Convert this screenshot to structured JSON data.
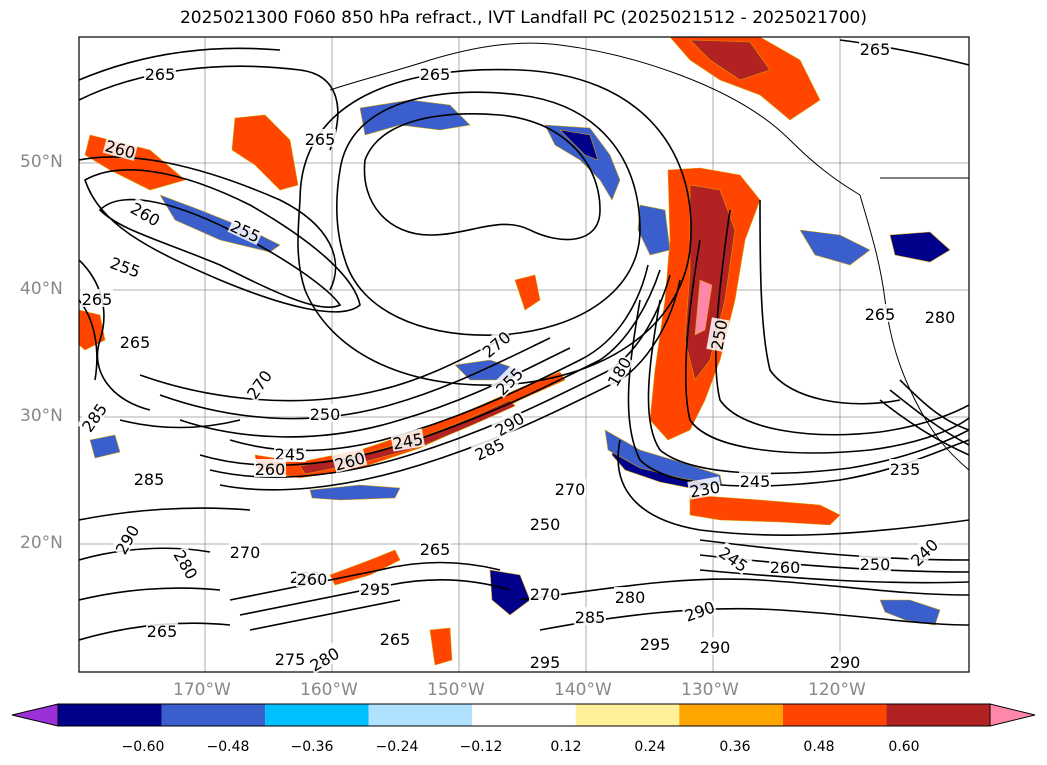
{
  "title": "2025021300 F060 850 hPa refract., IVT Landfall PC (2025021512 - 2025021700)",
  "lat_labels": [
    "50°N",
    "40°N",
    "30°N",
    "20°N"
  ],
  "lon_labels": [
    "170°W",
    "160°W",
    "150°W",
    "140°W",
    "130°W",
    "120°W"
  ],
  "contour_labels": [
    "265",
    "265",
    "265",
    "265",
    "260",
    "260",
    "255",
    "255",
    "265",
    "265",
    "270",
    "270",
    "285",
    "285",
    "290",
    "280",
    "270",
    "265",
    "250",
    "245",
    "245",
    "255",
    "260",
    "260",
    "260",
    "290",
    "285",
    "270",
    "250",
    "250",
    "180",
    "230",
    "245",
    "235",
    "265",
    "270",
    "260",
    "295",
    "280",
    "285",
    "275",
    "265",
    "290",
    "245",
    "260",
    "250",
    "240",
    "290",
    "295",
    "295",
    "280",
    "290",
    "265",
    "280"
  ],
  "colorbar": {
    "ticks": [
      "−0.60",
      "−0.48",
      "−0.36",
      "−0.24",
      "−0.12",
      "0.12",
      "0.24",
      "0.36",
      "0.48",
      "0.60"
    ],
    "colors": [
      "#9b30d9",
      "#00008b",
      "#3a5fcd",
      "#00bfff",
      "#b0e2ff",
      "#ffffff",
      "#fff099",
      "#ffa500",
      "#ff4500",
      "#b22222",
      "#ff88aa"
    ]
  },
  "fill_colors": {
    "neg_strong": "#00008b",
    "neg_mid": "#3a5fcd",
    "neg_light": "#00bfff",
    "pos_mid": "#ff4500",
    "pos_strong": "#b22222",
    "pos_light": "#ffa500",
    "pos_extreme": "#ff88aa"
  }
}
